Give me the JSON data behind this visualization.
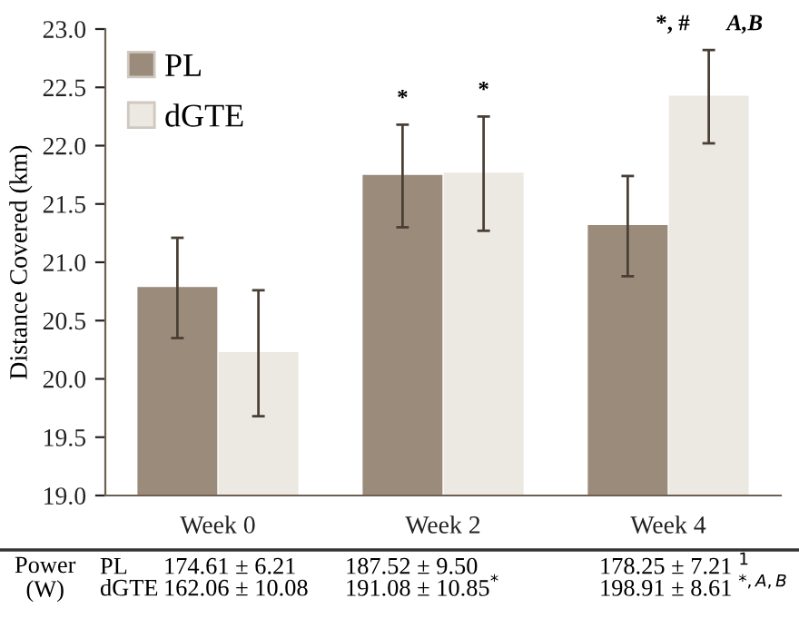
{
  "chart_data": {
    "type": "bar",
    "ylabel": "Distance Covered (km)",
    "categories": [
      "Week 0",
      "Week 2",
      "Week 4"
    ],
    "series": [
      {
        "name": "PL",
        "color": "#9b8b7b",
        "values": [
          20.78,
          21.74,
          21.31
        ],
        "errors": [
          0.43,
          0.44,
          0.43
        ]
      },
      {
        "name": "dGTE",
        "color": "#ece8e2",
        "values": [
          20.22,
          21.76,
          22.42
        ],
        "errors": [
          0.54,
          0.49,
          0.4
        ]
      }
    ],
    "ylim": [
      19.0,
      23.0
    ],
    "yticks": [
      {
        "value": 19.0,
        "label": "19.0"
      },
      {
        "value": 19.5,
        "label": "19.5"
      },
      {
        "value": 20.0,
        "label": "20.0"
      },
      {
        "value": 20.5,
        "label": "20.5"
      },
      {
        "value": 21.0,
        "label": "21.0"
      },
      {
        "value": 21.5,
        "label": "21.5"
      },
      {
        "value": 22.0,
        "label": "22.0"
      },
      {
        "value": 22.5,
        "label": "22.5"
      },
      {
        "value": 23.0,
        "label": "23.0"
      }
    ],
    "legend": "top left",
    "grid": false,
    "annotations": [
      "Power\n(W)",
      "174.61 ± 6.21",
      "187.52 ± 9.50",
      "178.25 ± 7.21 $^{1}$",
      "162.06 ± 10.08",
      "191.08 ± 10.85$^{*}$",
      "198.91 ± 8.61 $^{*,A,B}$",
      "*",
      "*",
      "*, #",
      "A,B"
    ]
  }
}
